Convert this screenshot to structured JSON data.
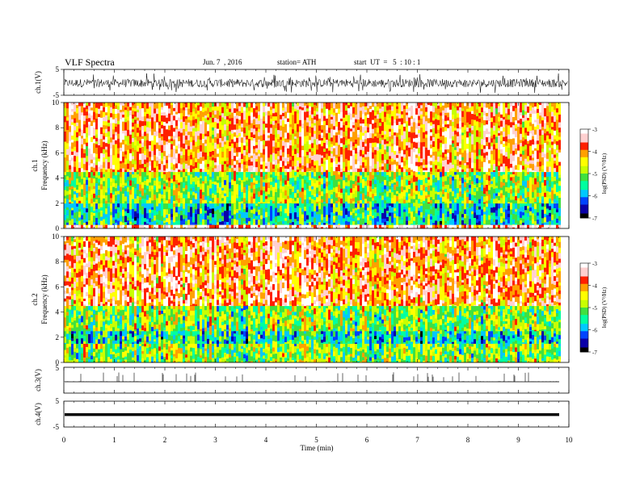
{
  "header": {
    "title": "VLF  Spectra",
    "date": "Jun. 7  , 2016",
    "station": "station= ATH",
    "start_ut": "start  UT  =   5  : 10 : 1"
  },
  "colors": {
    "colormap": [
      "#000000",
      "#0a00a8",
      "#0044ff",
      "#00c8ff",
      "#00ffa0",
      "#40e040",
      "#c8ff00",
      "#ffff00",
      "#ffa000",
      "#ff2000",
      "#ffd0d0",
      "#ffffff"
    ]
  },
  "chart_data": [
    {
      "type": "line",
      "name": "ch1-waveform",
      "ylabel": "ch.1(V)",
      "yticks": [
        "5",
        "-5"
      ],
      "ylim": [
        -5,
        5
      ],
      "xlim": [
        0,
        10
      ],
      "signal": "dense noise centred near -0.3 V with bursts to ±4 V"
    },
    {
      "type": "heatmap",
      "name": "ch1-spectrogram",
      "ylabel_channel": "ch.1",
      "ylabel": "Frequency  (kHz)",
      "yticks": [
        "0",
        "2",
        "4",
        "6",
        "8",
        "10"
      ],
      "ylim": [
        0,
        10
      ],
      "xlim": [
        0,
        9.8
      ],
      "colorbar": {
        "label": "log(PSD) (V²/Hz)",
        "ticks": [
          "-3",
          "-4",
          "-5",
          "-6",
          "-7"
        ],
        "range": [
          -7,
          -3
        ]
      },
      "bands": [
        {
          "f_low": 0,
          "f_high": 0.3,
          "logpsd": -3.2
        },
        {
          "f_low": 0.3,
          "f_high": 2.0,
          "logpsd": -5.6
        },
        {
          "f_low": 2.0,
          "f_high": 4.5,
          "logpsd": -4.9
        },
        {
          "f_low": 4.5,
          "f_high": 10,
          "logpsd": -3.8
        }
      ]
    },
    {
      "type": "heatmap",
      "name": "ch2-spectrogram",
      "ylabel_channel": "ch.2",
      "ylabel": "Frequency  (kHz)",
      "yticks": [
        "0",
        "2",
        "4",
        "6",
        "8",
        "10"
      ],
      "ylim": [
        0,
        10
      ],
      "xlim": [
        0,
        9.8
      ],
      "colorbar": {
        "label": "log(PSD) (V²/Hz)",
        "ticks": [
          "-3",
          "-4",
          "-5",
          "-6",
          "-7"
        ],
        "range": [
          -7,
          -3
        ]
      },
      "bands": [
        {
          "f_low": 0,
          "f_high": 1.5,
          "logpsd": -5.0
        },
        {
          "f_low": 1.5,
          "f_high": 2.5,
          "logpsd": -5.6
        },
        {
          "f_low": 2.5,
          "f_high": 4.5,
          "logpsd": -5.0
        },
        {
          "f_low": 4.5,
          "f_high": 10,
          "logpsd": -3.8
        }
      ]
    },
    {
      "type": "line",
      "name": "ch3-signal",
      "ylabel": "ch.3(V)",
      "yticks": [
        "5"
      ],
      "ylim": [
        0,
        5
      ],
      "xlim": [
        0,
        10
      ],
      "signal": "baseline near 0 V with sparse spikes up to ~4 V"
    },
    {
      "type": "line",
      "name": "ch4-signal",
      "ylabel": "ch.4(V)",
      "yticks": [
        "5",
        "-5"
      ],
      "ylim": [
        -5,
        5
      ],
      "xlim": [
        0,
        10
      ],
      "signal": "constant near -0.2 V"
    }
  ],
  "xaxis": {
    "label": "Time  (min)",
    "ticks": [
      "0",
      "1",
      "2",
      "3",
      "4",
      "5",
      "6",
      "7",
      "8",
      "9",
      "10"
    ],
    "range": [
      0,
      10
    ]
  }
}
